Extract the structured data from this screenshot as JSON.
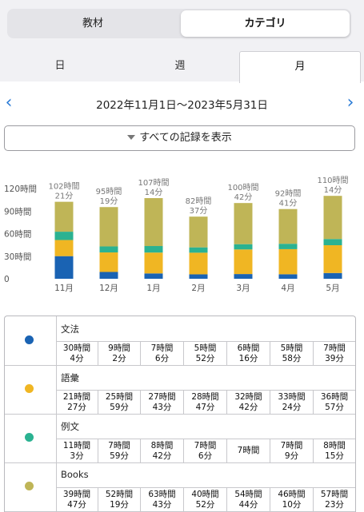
{
  "segmented": {
    "left": "教材",
    "right": "カテゴリ"
  },
  "tabs": [
    "日",
    "週",
    "月"
  ],
  "date_range": "2022年11月1日〜2023年5月31日",
  "show_all_label": "すべての記録を表示",
  "colors": {
    "文法": "#1a63b3",
    "語彙": "#f0b623",
    "例文": "#2bb291",
    "Books": "#bfb557",
    "accent": "#2a7bd6"
  },
  "chart_data": {
    "type": "bar",
    "stacked": true,
    "categories": [
      "11月",
      "12月",
      "1月",
      "2月",
      "3月",
      "4月",
      "5月"
    ],
    "ylim": [
      0,
      120
    ],
    "yticks": [
      "120時間",
      "90時間",
      "60時間",
      "30時間",
      "0"
    ],
    "series": [
      {
        "name": "文法",
        "values": [
          30.07,
          9.03,
          7.1,
          5.87,
          6.27,
          5.97,
          7.65
        ]
      },
      {
        "name": "語彙",
        "values": [
          21.45,
          25.98,
          27.72,
          28.78,
          32.7,
          33.4,
          36.95
        ]
      },
      {
        "name": "例文",
        "values": [
          11.05,
          7.98,
          8.7,
          7.1,
          7.0,
          7.15,
          8.25
        ]
      },
      {
        "name": "Books",
        "values": [
          39.78,
          52.32,
          63.72,
          40.87,
          54.73,
          46.17,
          57.38
        ]
      }
    ],
    "totals": [
      [
        "102時間",
        "21分"
      ],
      [
        "95時間",
        "19分"
      ],
      [
        "107時間",
        "14分"
      ],
      [
        "82時間",
        "37分"
      ],
      [
        "100時間",
        "42分"
      ],
      [
        "92時間",
        "41分"
      ],
      [
        "110時間",
        "14分"
      ]
    ]
  },
  "table": {
    "rows": [
      {
        "name": "文法",
        "cells": [
          [
            "30時間",
            "4分"
          ],
          [
            "9時間",
            "2分"
          ],
          [
            "7時間",
            "6分"
          ],
          [
            "5時間",
            "52分"
          ],
          [
            "6時間",
            "16分"
          ],
          [
            "5時間",
            "58分"
          ],
          [
            "7時間",
            "39分"
          ]
        ]
      },
      {
        "name": "語彙",
        "cells": [
          [
            "21時間",
            "27分"
          ],
          [
            "25時間",
            "59分"
          ],
          [
            "27時間",
            "43分"
          ],
          [
            "28時間",
            "47分"
          ],
          [
            "32時間",
            "42分"
          ],
          [
            "33時間",
            "24分"
          ],
          [
            "36時間",
            "57分"
          ]
        ]
      },
      {
        "name": "例文",
        "cells": [
          [
            "11時間",
            "3分"
          ],
          [
            "7時間",
            "59分"
          ],
          [
            "8時間",
            "42分"
          ],
          [
            "7時間",
            "6分"
          ],
          [
            "7時間"
          ],
          [
            "7時間",
            "9分"
          ],
          [
            "8時間",
            "15分"
          ]
        ]
      },
      {
        "name": "Books",
        "cells": [
          [
            "39時間",
            "47分"
          ],
          [
            "52時間",
            "19分"
          ],
          [
            "63時間",
            "43分"
          ],
          [
            "40時間",
            "52分"
          ],
          [
            "54時間",
            "44分"
          ],
          [
            "46時間",
            "10分"
          ],
          [
            "57時間",
            "23分"
          ]
        ]
      }
    ]
  }
}
